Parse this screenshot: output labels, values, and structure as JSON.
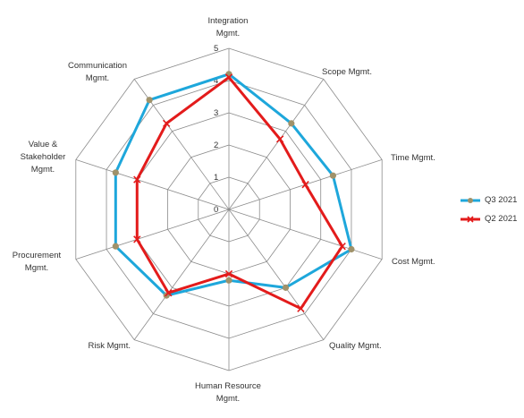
{
  "chart_data": {
    "type": "radar",
    "categories": [
      "Integration\nMgmt.",
      "Scope Mgmt.",
      "Time Mgmt.",
      "Cost Mgmt.",
      "Quality Mgmt.",
      "Human Resource\nMgmt.",
      "Risk Mgmt.",
      "Procurement\nMgmt.",
      "Value &\nStakeholder\nMgmt.",
      "Communication\nMgmt."
    ],
    "rmin": 0,
    "rmax": 5,
    "ticks": [
      "0",
      "1",
      "2",
      "3",
      "4",
      "5"
    ],
    "grid": true,
    "legend_position": "right",
    "series": [
      {
        "name": "Q3 2021",
        "color": "#1EA7DB",
        "marker_color": "#A0926A",
        "marker": "circle",
        "values": [
          4.2,
          3.3,
          3.4,
          4.0,
          3.0,
          2.2,
          3.3,
          3.7,
          3.7,
          4.2
        ]
      },
      {
        "name": "Q2 2021",
        "color": "#E31B1B",
        "marker": "x",
        "values": [
          4.1,
          2.7,
          2.5,
          3.7,
          3.8,
          2.0,
          3.2,
          3.0,
          3.0,
          3.3
        ]
      }
    ]
  }
}
